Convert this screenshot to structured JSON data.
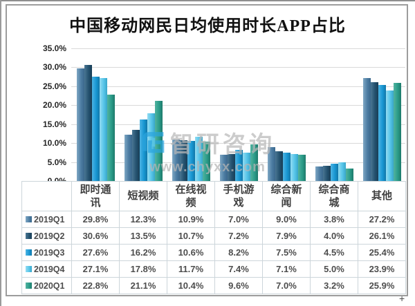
{
  "frame": {
    "resize_handle_label": "+"
  },
  "watermark": {
    "brand": "智研咨询",
    "url": "www.chyxx.com",
    "logo_blue": "#2BA5DE",
    "logo_teal": "#2b9c89",
    "text_color": "#b9b9b9"
  },
  "chart_data": {
    "type": "bar",
    "title": "中国移动网民日均使用时长APP占比",
    "categories": [
      "即时通讯",
      "短视频",
      "在线视频",
      "手机游戏",
      "综合新闻",
      "综合商城",
      "其他"
    ],
    "series": [
      {
        "name": "2019Q1",
        "color": "#4d7da3",
        "color_light": "#7fa7c4",
        "color_dark": "#3b688c",
        "values": [
          29.8,
          12.3,
          10.9,
          7.0,
          9.0,
          3.8,
          27.2
        ]
      },
      {
        "name": "2019Q2",
        "color": "#24526f",
        "color_light": "#4a7693",
        "color_dark": "#193e56",
        "values": [
          30.6,
          13.5,
          10.7,
          7.2,
          7.9,
          4.0,
          26.1
        ]
      },
      {
        "name": "2019Q3",
        "color": "#1897d3",
        "color_light": "#4db4e4",
        "color_dark": "#1177a8",
        "values": [
          27.6,
          16.2,
          10.6,
          8.2,
          7.5,
          4.5,
          25.4
        ]
      },
      {
        "name": "2019Q4",
        "color": "#57c5e9",
        "color_light": "#93dcf2",
        "color_dark": "#38a6c9",
        "values": [
          27.1,
          17.8,
          11.7,
          7.4,
          7.1,
          5.0,
          23.9
        ]
      },
      {
        "name": "2020Q1",
        "color": "#2b9c89",
        "color_light": "#52b3a0",
        "color_dark": "#1e7a6b",
        "values": [
          22.8,
          21.1,
          10.4,
          9.6,
          7.0,
          3.2,
          25.9
        ]
      }
    ],
    "ylim": [
      0,
      35
    ],
    "ytick_step": 5,
    "ytick_labels": [
      "35.0%",
      "30.0%",
      "25.0%",
      "20.0%",
      "15.0%",
      "10.0%",
      "5.0%",
      "0.0%"
    ],
    "value_suffix": "%",
    "grid": true,
    "legend_position": "table-left-column",
    "xlabel": "",
    "ylabel": ""
  }
}
